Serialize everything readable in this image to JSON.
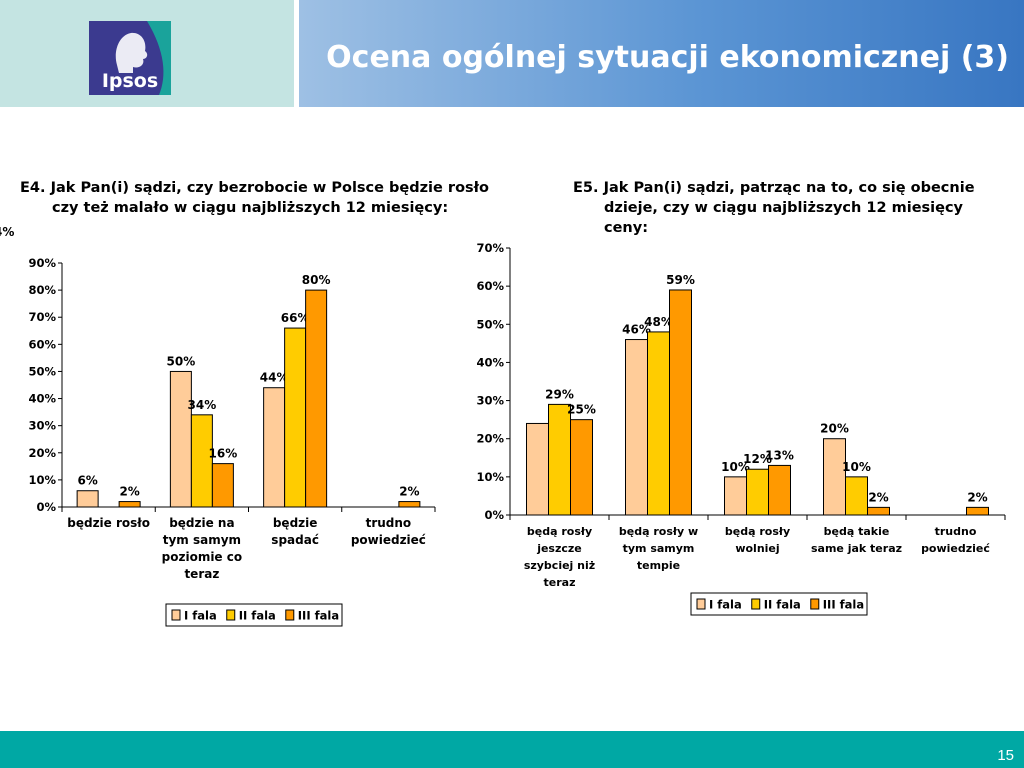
{
  "header": {
    "title": "Ocena ogólnej sytuacji ekonomicznej (3)",
    "logo_text": "Ipsos"
  },
  "colors": {
    "fala1": "#ffcc99",
    "fala2": "#ffcc00",
    "fala3": "#ff9900",
    "title_bar_left": "#c4e4e2",
    "title_bar_right": "#3876c2",
    "footer": "#00a8a4"
  },
  "questions": {
    "q1": {
      "num": "E4.",
      "line1": "Jak Pan(i) sądzi, czy bezrobocie w Polsce będzie rosło",
      "line2": "czy też malało w ciągu najbliższych 12 miesięcy:"
    },
    "q2": {
      "num": "E5.",
      "line1": "Jak Pan(i) sądzi, patrząc na to, co się obecnie",
      "line2": "dzieje, czy w ciągu najbliższych 12 miesięcy",
      "line3": "ceny:"
    }
  },
  "chart_data": [
    {
      "type": "bar",
      "categories": [
        [
          "będzie rosło"
        ],
        [
          "będzie na",
          "tym samym",
          "poziomie co",
          "teraz"
        ],
        [
          "będzie",
          "spadać"
        ],
        [
          "trudno",
          "powiedzieć"
        ]
      ],
      "series": [
        {
          "name": "I fala",
          "values": [
            6,
            50,
            44,
            null
          ]
        },
        {
          "name": "II fala",
          "values": [
            null,
            34,
            66,
            null
          ]
        },
        {
          "name": "III fala",
          "values": [
            2,
            16,
            80,
            2
          ]
        }
      ],
      "ylim": [
        0,
        90
      ],
      "yticks": [
        "0%",
        "10%",
        "20%",
        "30%",
        "40%",
        "50%",
        "60%",
        "70%",
        "80%",
        "90%"
      ],
      "legend": "bottom",
      "grid": false
    },
    {
      "type": "bar",
      "categories": [
        [
          "będą rosły",
          "jeszcze",
          "szybciej niż",
          "teraz"
        ],
        [
          "będą rosły w",
          "tym samym",
          "tempie"
        ],
        [
          "będą rosły",
          "wolniej"
        ],
        [
          "będą takie",
          "same jak teraz"
        ],
        [
          "trudno",
          "powiedzieć"
        ]
      ],
      "series": [
        {
          "name": "I fala",
          "values": [
            24,
            46,
            10,
            20,
            null
          ]
        },
        {
          "name": "II fala",
          "values": [
            29,
            48,
            12,
            10,
            null
          ]
        },
        {
          "name": "III fala",
          "values": [
            25,
            59,
            13,
            2,
            2
          ]
        }
      ],
      "ylim": [
        0,
        70
      ],
      "yticks": [
        "0%",
        "10%",
        "20%",
        "30%",
        "40%",
        "50%",
        "60%",
        "70%"
      ],
      "legend": "bottom",
      "grid": false
    }
  ],
  "footer": {
    "page": "15"
  }
}
